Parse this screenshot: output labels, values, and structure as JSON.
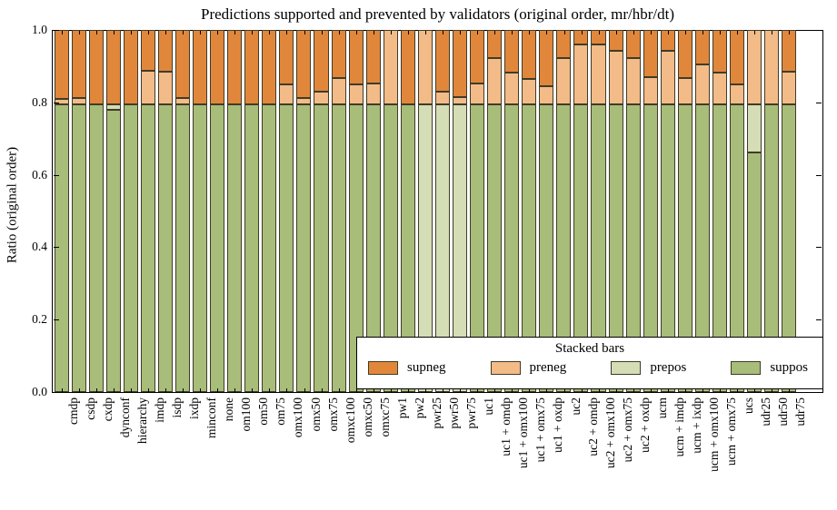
{
  "title": "Predictions supported and prevented by validators (original order, mr/hbr/dt)",
  "ylabel": "Ratio (original order)",
  "legend": {
    "title": "Stacked bars",
    "entries": [
      {
        "label": "supneg",
        "color": "#e1873c"
      },
      {
        "label": "preneg",
        "color": "#f3bb88"
      },
      {
        "label": "prepos",
        "color": "#d4ddb5"
      },
      {
        "label": "suppos",
        "color": "#a7bd79"
      }
    ]
  },
  "yticks": [
    "0.0",
    "0.2",
    "0.4",
    "0.6",
    "0.8",
    "1.0"
  ],
  "chart_data": {
    "type": "bar",
    "stacked": true,
    "title": "Predictions supported and prevented by validators (original order, mr/hbr/dt)",
    "xlabel": "",
    "ylabel": "Ratio (original order)",
    "ylim": [
      0.0,
      1.0
    ],
    "grid": false,
    "legend_position": "lower right inside",
    "order_bottom_to_top": [
      "suppos",
      "prepos",
      "preneg",
      "supneg"
    ],
    "categories": [
      "cmdp",
      "csdp",
      "cxdp",
      "dynconf",
      "hierarchy",
      "imdp",
      "isdp",
      "ixdp",
      "minconf",
      "none",
      "om100",
      "om50",
      "om75",
      "omx100",
      "omx50",
      "omx75",
      "omxc100",
      "omxc50",
      "omxc75",
      "pw1",
      "pw2",
      "pwr25",
      "pwr50",
      "pwr75",
      "uc1",
      "uc1 + omdp",
      "uc1 + omx100",
      "uc1 + omx75",
      "uc1 + oxdp",
      "uc2",
      "uc2 + omdp",
      "uc2 + omx100",
      "uc2 + omx75",
      "uc2 + oxdp",
      "ucm",
      "ucm + imdp",
      "ucm + ixdp",
      "ucm + omx100",
      "ucm + omx75",
      "ucs",
      "udr25",
      "udr50",
      "udr75"
    ],
    "series": [
      {
        "name": "suppos",
        "color": "#a7bd79",
        "values": [
          0.794,
          0.794,
          0.794,
          0.779,
          0.794,
          0.794,
          0.794,
          0.794,
          0.794,
          0.794,
          0.794,
          0.794,
          0.794,
          0.794,
          0.794,
          0.794,
          0.794,
          0.794,
          0.794,
          0.794,
          0.794,
          0.0,
          0.0,
          0.0,
          0.794,
          0.794,
          0.794,
          0.794,
          0.794,
          0.794,
          0.794,
          0.794,
          0.794,
          0.794,
          0.794,
          0.794,
          0.794,
          0.794,
          0.794,
          0.794,
          0.662,
          0.794,
          0.794
        ]
      },
      {
        "name": "prepos",
        "color": "#d4ddb5",
        "values": [
          0,
          0,
          0,
          0.015,
          0,
          0,
          0,
          0,
          0,
          0,
          0,
          0,
          0,
          0,
          0,
          0,
          0,
          0,
          0,
          0,
          0,
          0.794,
          0.794,
          0.794,
          0,
          0,
          0,
          0,
          0,
          0,
          0,
          0,
          0,
          0,
          0,
          0,
          0,
          0,
          0,
          0,
          0.132,
          0,
          0
        ]
      },
      {
        "name": "preneg",
        "color": "#f3bb88",
        "values": [
          0.016,
          0.018,
          0,
          0,
          0,
          0.093,
          0.091,
          0.018,
          0,
          0,
          0,
          0,
          0,
          0.055,
          0.019,
          0.036,
          0.073,
          0.055,
          0.059,
          0.206,
          0,
          0.206,
          0.035,
          0.02,
          0.058,
          0.129,
          0.089,
          0.07,
          0.051,
          0.128,
          0.165,
          0.165,
          0.149,
          0.129,
          0.076,
          0.148,
          0.072,
          0.111,
          0.089,
          0.055,
          0.206,
          0.206,
          0.092
        ]
      },
      {
        "name": "supneg",
        "color": "#e1873c",
        "values": [
          0.19,
          0.188,
          0.206,
          0.206,
          0.206,
          0.113,
          0.115,
          0.188,
          0.206,
          0.206,
          0.206,
          0.206,
          0.206,
          0.151,
          0.187,
          0.17,
          0.133,
          0.151,
          0.147,
          0,
          0.206,
          0,
          0.171,
          0.186,
          0.148,
          0.077,
          0.117,
          0.136,
          0.155,
          0.078,
          0.041,
          0.041,
          0.057,
          0.077,
          0.13,
          0.058,
          0.134,
          0.095,
          0.117,
          0.151,
          0,
          0,
          0.114
        ]
      }
    ]
  }
}
